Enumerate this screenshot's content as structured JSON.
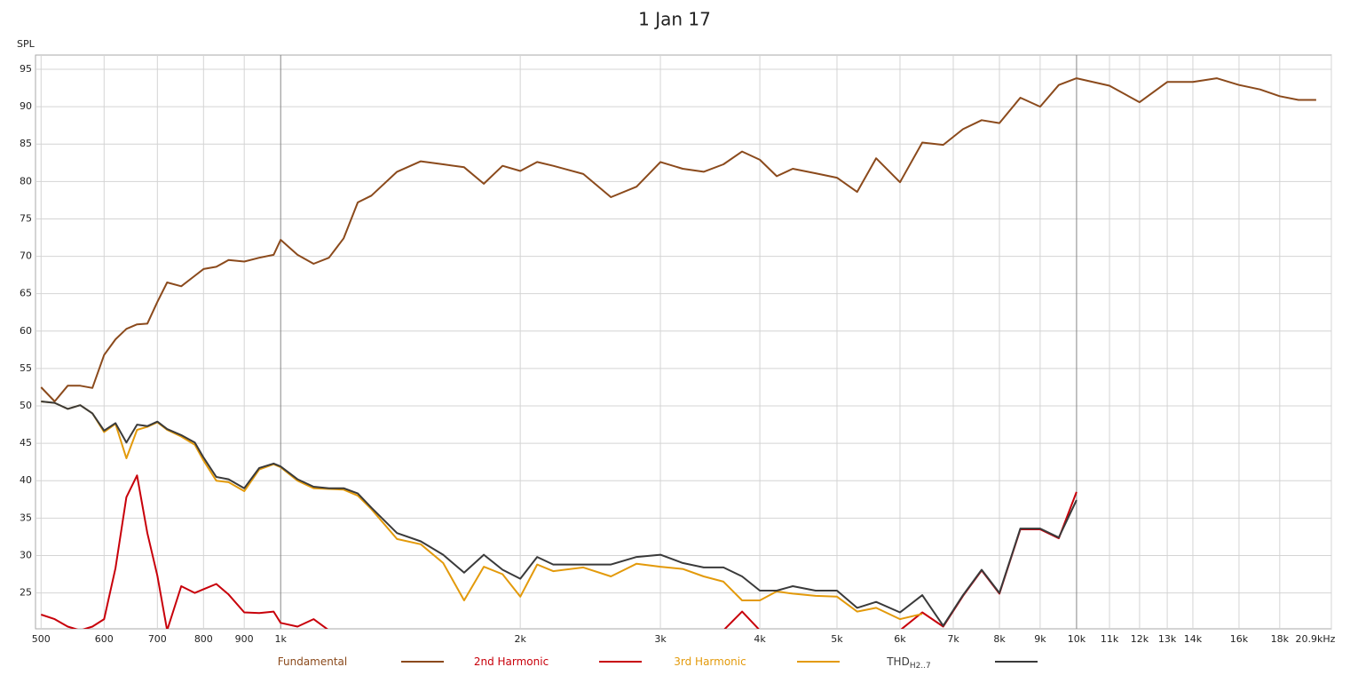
{
  "chart_data": {
    "type": "line",
    "title": "1 Jan 17",
    "y_label": "SPL",
    "xlog": true,
    "grid": true,
    "xlim": [
      492,
      20900
    ],
    "ylim": [
      20.2,
      96.9
    ],
    "xticks": [
      500,
      600,
      700,
      800,
      900,
      {
        "value": 1000,
        "label": "1k"
      },
      {
        "value": 2000,
        "label": "2k"
      },
      {
        "value": 3000,
        "label": "3k"
      },
      {
        "value": 4000,
        "label": "4k"
      },
      {
        "value": 5000,
        "label": "5k"
      },
      {
        "value": 6000,
        "label": "6k"
      },
      {
        "value": 7000,
        "label": "7k"
      },
      {
        "value": 8000,
        "label": "8k"
      },
      {
        "value": 9000,
        "label": "9k"
      },
      {
        "value": 10000,
        "label": "10k"
      },
      {
        "value": 11000,
        "label": "11k"
      },
      {
        "value": 12000,
        "label": "12k"
      },
      {
        "value": 13000,
        "label": "13k"
      },
      {
        "value": 14000,
        "label": "14k"
      },
      {
        "value": 16000,
        "label": "16k"
      },
      {
        "value": 18000,
        "label": "18k"
      },
      {
        "value": 20900,
        "label": "20.9kHz"
      }
    ],
    "yticks": [
      25,
      30,
      35,
      40,
      45,
      50,
      55,
      60,
      65,
      70,
      75,
      80,
      85,
      90,
      95
    ],
    "x": [
      500,
      520,
      540,
      560,
      580,
      600,
      620,
      640,
      660,
      680,
      700,
      720,
      750,
      780,
      800,
      830,
      860,
      900,
      940,
      980,
      1000,
      1050,
      1100,
      1150,
      1200,
      1250,
      1300,
      1400,
      1500,
      1600,
      1700,
      1800,
      1900,
      2000,
      2100,
      2200,
      2400,
      2600,
      2800,
      3000,
      3200,
      3400,
      3600,
      3800,
      4000,
      4200,
      4400,
      4700,
      5000,
      5300,
      5600,
      6000,
      6400,
      6800,
      7200,
      7600,
      8000,
      8500,
      9000,
      9500,
      10000,
      11000,
      12000,
      13000,
      14000,
      15000,
      16000,
      17000,
      18000,
      19000,
      20000
    ],
    "series": [
      {
        "name": "Fundamental",
        "color": "#8b4a1c",
        "values": [
          52.5,
          50.6,
          52.7,
          52.7,
          52.4,
          56.8,
          58.9,
          60.3,
          60.9,
          61.0,
          63.9,
          66.5,
          66.0,
          67.4,
          68.3,
          68.6,
          69.5,
          69.3,
          69.8,
          70.2,
          72.2,
          70.2,
          69.0,
          69.8,
          72.4,
          77.2,
          78.1,
          81.3,
          82.7,
          82.3,
          81.9,
          79.7,
          82.1,
          81.4,
          82.6,
          82.1,
          81.0,
          77.9,
          79.3,
          82.6,
          81.7,
          81.3,
          82.3,
          84.0,
          82.9,
          80.7,
          81.7,
          81.1,
          80.5,
          78.6,
          83.1,
          79.9,
          85.2,
          84.9,
          87.0,
          88.2,
          87.8,
          91.2,
          90.0,
          92.9,
          93.8,
          92.8,
          90.6,
          93.3,
          93.3,
          93.8,
          92.9,
          92.3,
          91.4,
          90.9,
          90.9
        ]
      },
      {
        "name": "2nd Harmonic",
        "color": "#c8000a",
        "values": [
          22.1,
          21.5,
          20.5,
          20.0,
          20.5,
          21.5,
          28.3,
          37.8,
          40.7,
          33.0,
          27.3,
          20.0,
          25.9,
          25.0,
          25.5,
          26.2,
          24.8,
          22.4,
          22.3,
          22.5,
          21.0,
          20.5,
          21.5,
          20.0,
          null,
          null,
          null,
          null,
          null,
          null,
          null,
          null,
          null,
          null,
          null,
          null,
          null,
          null,
          null,
          null,
          null,
          null,
          20.0,
          22.5,
          20.0,
          null,
          null,
          null,
          null,
          null,
          null,
          20.0,
          22.4,
          20.5,
          24.6,
          28.0,
          24.9,
          33.5,
          33.5,
          32.3,
          38.5,
          null,
          null,
          null,
          null,
          null,
          null,
          null,
          null,
          null,
          null
        ]
      },
      {
        "name": "3rd Harmonic",
        "color": "#e39a0b",
        "values": [
          50.6,
          50.4,
          49.6,
          50.1,
          49.0,
          46.5,
          47.6,
          43.0,
          46.8,
          47.2,
          47.8,
          46.8,
          45.9,
          44.8,
          42.7,
          40.0,
          39.8,
          38.6,
          41.5,
          42.2,
          41.8,
          40.0,
          39.0,
          38.9,
          38.8,
          38.0,
          36.2,
          32.2,
          31.5,
          29.0,
          24.0,
          28.5,
          27.5,
          24.5,
          28.8,
          27.9,
          28.4,
          27.2,
          28.9,
          28.5,
          28.2,
          27.2,
          26.5,
          24.0,
          24.0,
          25.2,
          24.9,
          24.6,
          24.5,
          22.5,
          23.0,
          21.5,
          22.2,
          null,
          null,
          null,
          null,
          null,
          null,
          null,
          null,
          null,
          null,
          null,
          null,
          null,
          null,
          null,
          null,
          null,
          null
        ]
      },
      {
        "name": "THD",
        "name_subscript": "H2..7",
        "color": "#3a3a3a",
        "values": [
          50.6,
          50.4,
          49.6,
          50.1,
          49.0,
          46.7,
          47.7,
          45.1,
          47.5,
          47.3,
          47.9,
          46.9,
          46.1,
          45.1,
          43.1,
          40.5,
          40.2,
          39.0,
          41.7,
          42.3,
          41.9,
          40.2,
          39.2,
          39.0,
          39.0,
          38.3,
          36.4,
          33.0,
          31.9,
          30.1,
          27.7,
          30.1,
          28.1,
          26.9,
          29.8,
          28.8,
          28.8,
          28.8,
          29.8,
          30.1,
          29.0,
          28.4,
          28.4,
          27.2,
          25.3,
          25.3,
          25.9,
          25.3,
          25.3,
          23.0,
          23.8,
          22.4,
          24.7,
          20.6,
          24.7,
          28.1,
          25.0,
          33.6,
          33.6,
          32.4,
          37.4,
          null,
          null,
          null,
          null,
          null,
          null,
          null,
          null,
          null,
          null
        ]
      }
    ]
  }
}
